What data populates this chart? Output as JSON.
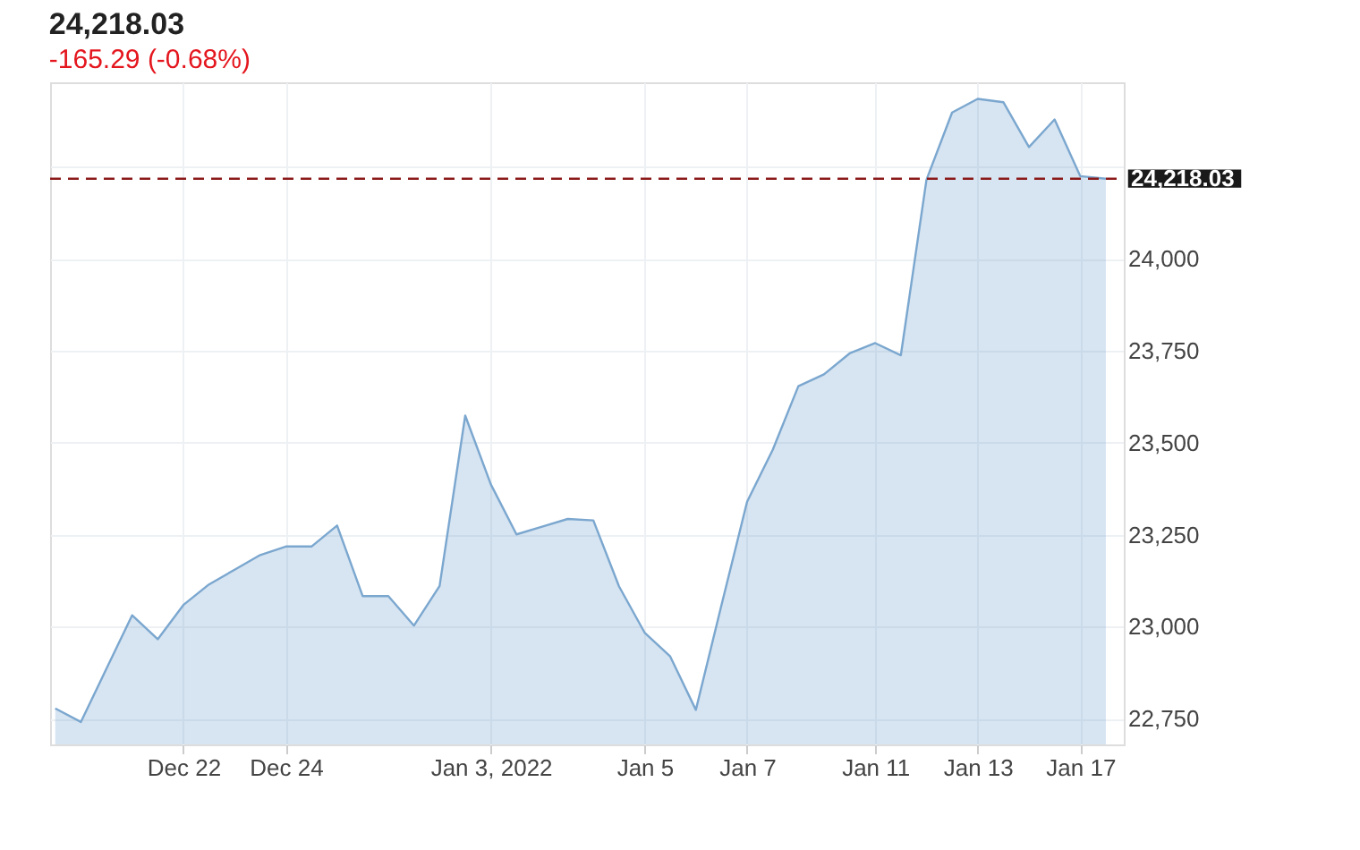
{
  "chart_data": {
    "type": "area",
    "title": "24,218.03",
    "subtitle": "-165.29 (-0.68%)",
    "categories": [
      null,
      null,
      null,
      null,
      null,
      "Dec 22",
      null,
      null,
      null,
      "Dec 24",
      null,
      null,
      null,
      null,
      null,
      null,
      null,
      "Jan 3, 2022",
      null,
      null,
      null,
      null,
      null,
      "Jan 5",
      null,
      null,
      null,
      "Jan 7",
      null,
      null,
      null,
      null,
      "Jan 11",
      null,
      null,
      null,
      "Jan 13",
      null,
      null,
      null,
      "Jan 17",
      null
    ],
    "series": [
      {
        "color": "#7ba7cf",
        "values": [
          22778,
          22741,
          22886,
          23031,
          22966,
          23059,
          23115,
          23155,
          23195,
          23218,
          23218,
          23275,
          23083,
          23083,
          23003,
          23111,
          23574,
          23387,
          23251,
          23272,
          23293,
          23289,
          23110,
          22984,
          22919,
          22774,
          23059,
          23340,
          23481,
          23654,
          23686,
          23743,
          23771,
          23738,
          24215,
          24398,
          24435,
          24426,
          24304,
          24379,
          24225,
          24218
        ]
      }
    ],
    "ylim": [
      22680,
      24480
    ],
    "yticks": [
      {
        "value": 22750,
        "label": "22,750"
      },
      {
        "value": 23000,
        "label": "23,000"
      },
      {
        "value": 23250,
        "label": "23,250"
      },
      {
        "value": 23500,
        "label": "23,500"
      },
      {
        "value": 23750,
        "label": "23,750"
      },
      {
        "value": 24000,
        "label": "24,000"
      },
      {
        "value": 24250,
        "label": null
      }
    ],
    "grid": true,
    "ref_lines": [
      {
        "axis": "y",
        "value": 24218.03,
        "label": "24,218.03",
        "color": "#8b1a1a",
        "line_style": "dashed"
      }
    ]
  }
}
